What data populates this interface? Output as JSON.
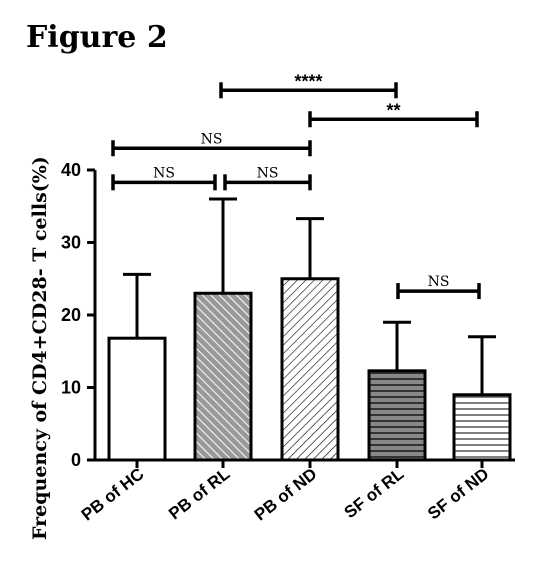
{
  "figure_label": "Figure 2",
  "chart_data": {
    "type": "bar",
    "title": "",
    "ylabel": "Frequency of CD4+CD28- T cells(%)",
    "xlabel": "",
    "ylim": [
      0,
      40
    ],
    "yticks": [
      0,
      10,
      20,
      30,
      40
    ],
    "categories": [
      "PB of HC",
      "PB of RL",
      "PB of ND",
      "SF of RL",
      "SF of ND"
    ],
    "values": [
      16.8,
      23.0,
      25.0,
      12.3,
      9.0
    ],
    "error_upper": [
      25.6,
      36.0,
      33.3,
      19.0,
      17.0
    ],
    "fills": [
      {
        "pattern": "none",
        "base": "#ffffff"
      },
      {
        "pattern": "diagonal-up-dense",
        "base": "#999999"
      },
      {
        "pattern": "diagonal-down",
        "base": "#ffffff"
      },
      {
        "pattern": "horizontal-dense",
        "base": "#888888"
      },
      {
        "pattern": "horizontal",
        "base": "#ffffff"
      }
    ],
    "significance": [
      {
        "from": 0,
        "to": 1,
        "label": "NS",
        "level": 38.3
      },
      {
        "from": 1,
        "to": 2,
        "label": "NS",
        "level": 38.3
      },
      {
        "from": 0,
        "to": 2,
        "label": "NS",
        "level": 43.0
      },
      {
        "from": 1,
        "to": 3,
        "label": "****",
        "level": 51.0
      },
      {
        "from": 2,
        "to": 4,
        "label": "**",
        "level": 47.0
      },
      {
        "from": 3,
        "to": 4,
        "label": "NS",
        "level": 23.3
      }
    ],
    "grid": false,
    "legend": "none",
    "colors": {
      "ink": "#000000"
    }
  }
}
